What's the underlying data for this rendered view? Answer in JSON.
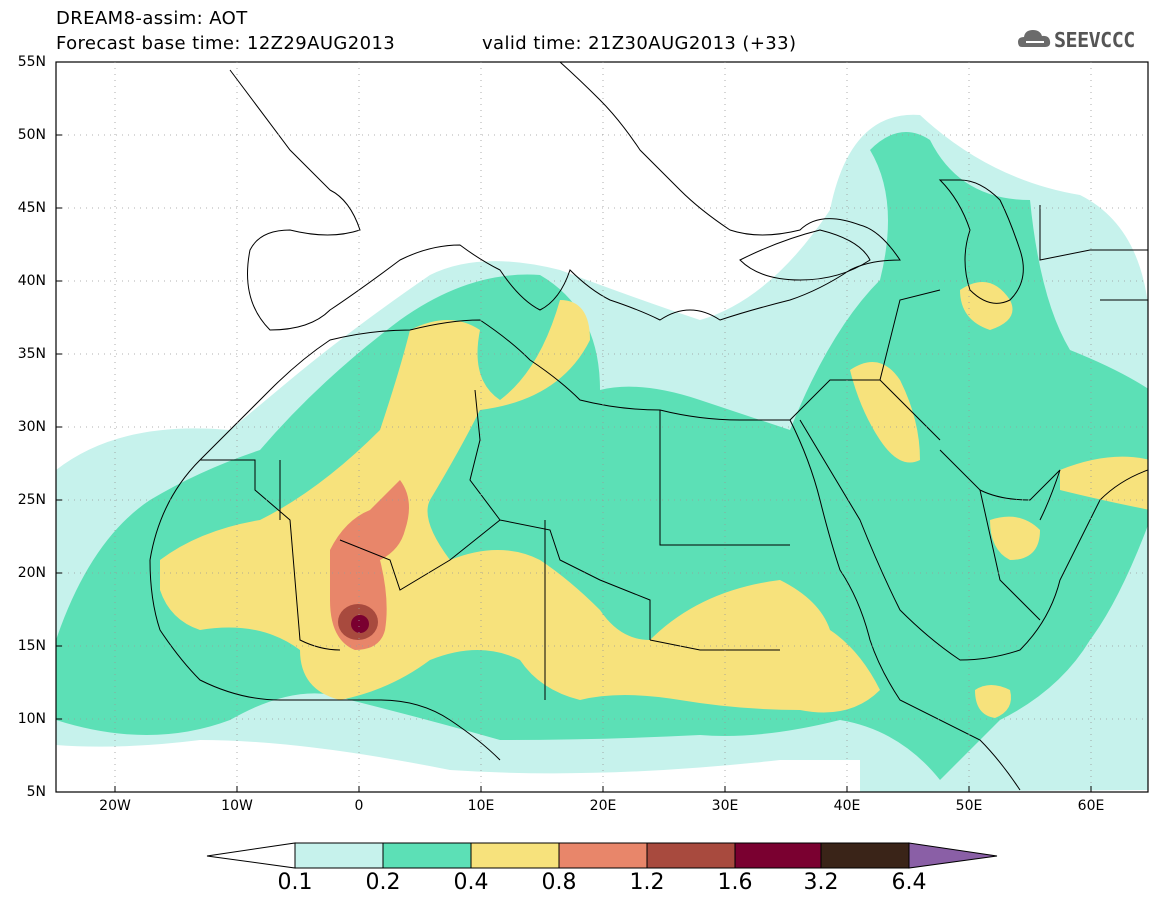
{
  "header": {
    "title_line1": "DREAM8-assim: AOT",
    "title_line2": "Forecast base time: 12Z29AUG2013",
    "valid_time": "valid time: 21Z30AUG2013 (+33)",
    "logo_text": "SEEVCCC",
    "logo_icon": "cloud-icon"
  },
  "axes": {
    "lat_labels": [
      "55N",
      "50N",
      "45N",
      "40N",
      "35N",
      "30N",
      "25N",
      "20N",
      "15N",
      "10N",
      "5N"
    ],
    "lon_labels": [
      "20W",
      "10W",
      "0",
      "10E",
      "20E",
      "30E",
      "40E",
      "50E",
      "60E"
    ]
  },
  "colorbar": {
    "levels": [
      "0.1",
      "0.2",
      "0.4",
      "0.8",
      "1.2",
      "1.6",
      "3.2",
      "6.4"
    ],
    "colors": [
      "#ffffff",
      "#c6f2ec",
      "#5ce0b6",
      "#f7e27c",
      "#e8866a",
      "#a84a3e",
      "#7a0030",
      "#3a2418",
      "#8a5fa6"
    ]
  },
  "map_colors": {
    "ocean": "#ffffff",
    "aot_0_1": "#c6f2ec",
    "aot_0_2": "#5ce0b6",
    "aot_0_4": "#f7e27c",
    "aot_0_8": "#e8866a",
    "aot_1_2": "#a84a3e",
    "aot_1_6": "#7a0030",
    "boundary": "#000000"
  }
}
